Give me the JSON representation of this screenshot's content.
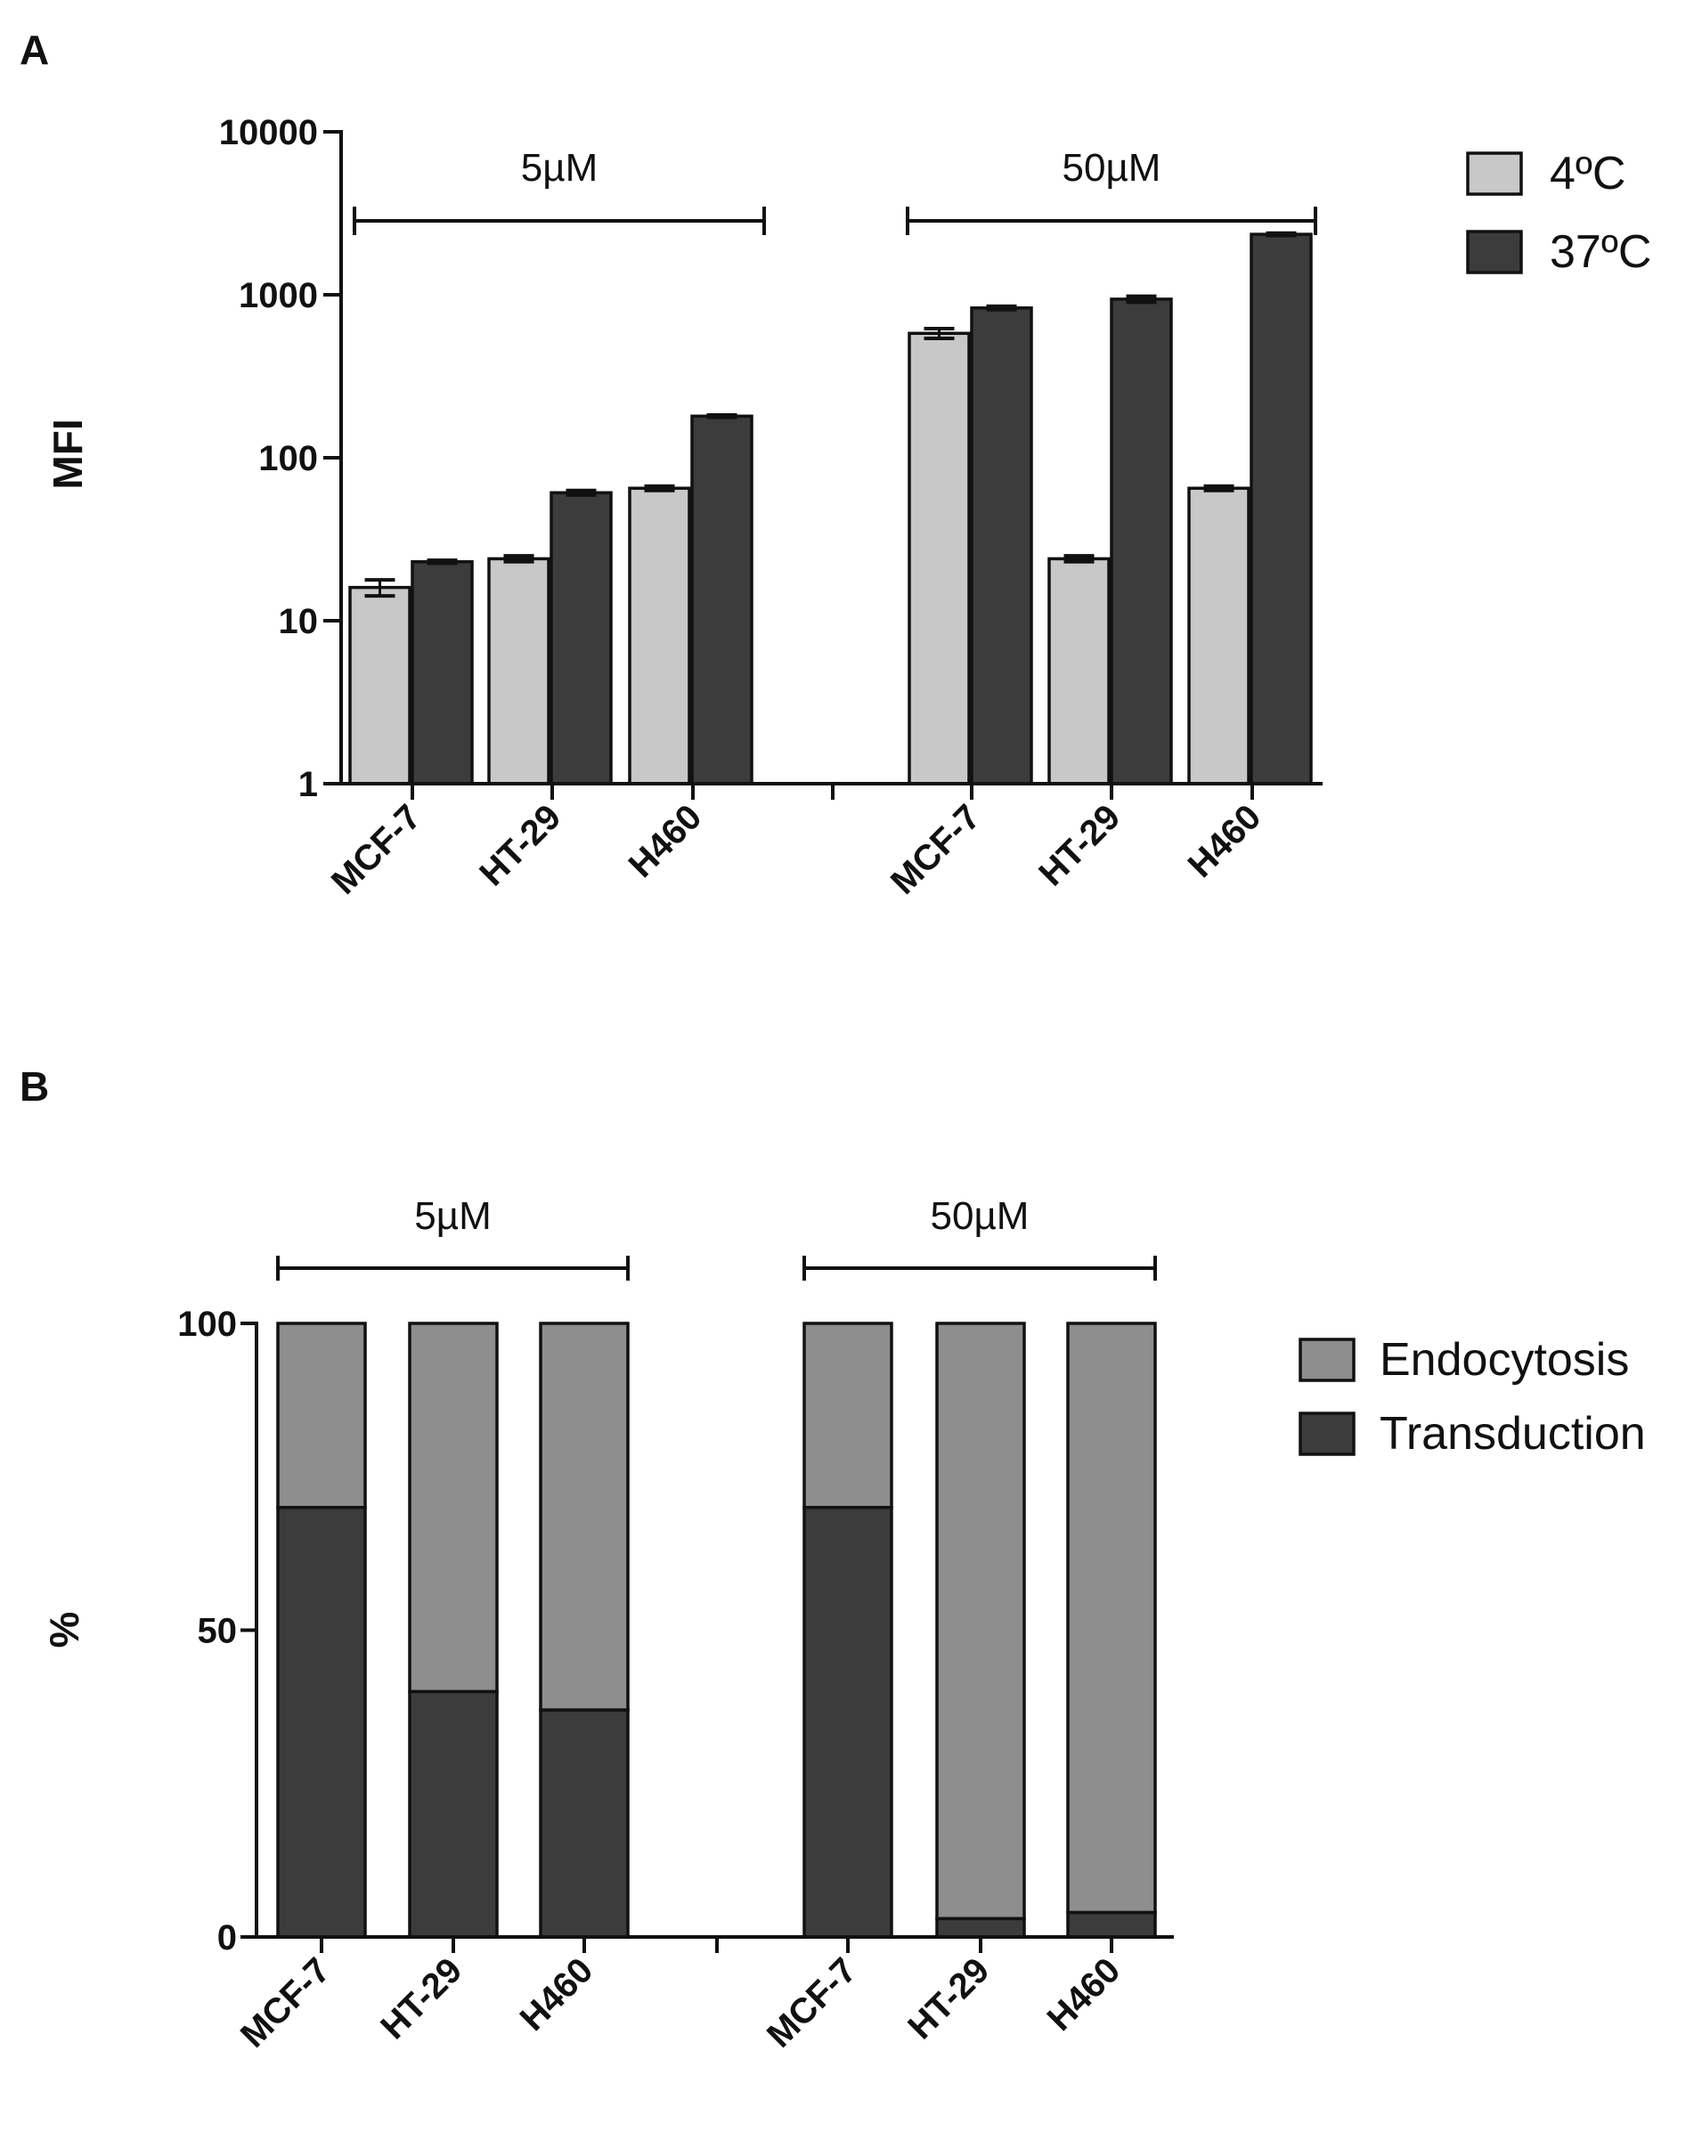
{
  "panels": {
    "a": {
      "label": "A"
    },
    "b": {
      "label": "B"
    }
  },
  "chart_data": [
    {
      "type": "bar",
      "scale": "log",
      "ylabel": "MFI",
      "ylim": [
        1,
        10000
      ],
      "yticks": [
        "1",
        "10",
        "100",
        "1000",
        "10000"
      ],
      "groups": [
        {
          "label": "5µM",
          "categories": [
            "MCF-7",
            "HT-29",
            "H460"
          ]
        },
        {
          "label": "50µM",
          "categories": [
            "MCF-7",
            "HT-29",
            "H460"
          ]
        }
      ],
      "series": [
        {
          "name": "4ºC",
          "color": "#c8c8c8",
          "values": [
            16,
            24,
            65,
            580,
            24,
            65
          ],
          "errors": [
            1.8,
            1,
            2,
            40,
            1,
            2
          ]
        },
        {
          "name": "37ºC",
          "color": "#3c3c3c",
          "values": [
            23,
            61,
            180,
            830,
            940,
            2350
          ],
          "errors": [
            0.5,
            2,
            3,
            20,
            40,
            40
          ]
        }
      ],
      "legend_position": "top-right"
    },
    {
      "type": "bar",
      "stacked": true,
      "ylabel": "%",
      "ylim": [
        0,
        100
      ],
      "yticks": [
        "0",
        "50",
        "100"
      ],
      "groups": [
        {
          "label": "5µM",
          "categories": [
            "MCF-7",
            "HT-29",
            "H460"
          ]
        },
        {
          "label": "50µM",
          "categories": [
            "MCF-7",
            "HT-29",
            "H460"
          ]
        }
      ],
      "series": [
        {
          "name": "Endocytosis",
          "color": "#8e8e8e",
          "values": [
            30,
            60,
            63,
            30,
            97,
            96
          ]
        },
        {
          "name": "Transduction",
          "color": "#3c3c3c",
          "values": [
            70,
            40,
            37,
            70,
            3,
            4
          ]
        }
      ],
      "legend_position": "right"
    }
  ]
}
